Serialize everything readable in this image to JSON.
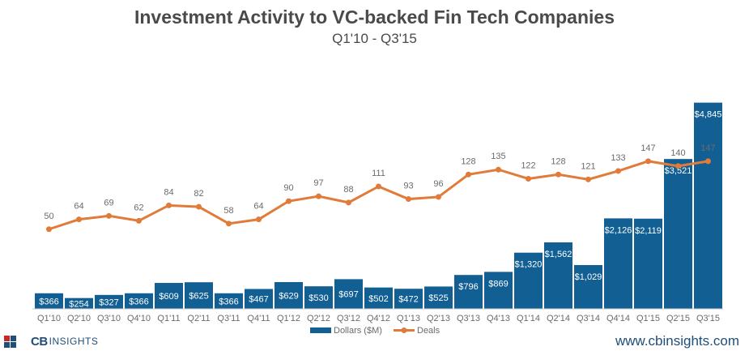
{
  "header": {
    "title": "Investment Activity to VC-backed Fin Tech Companies",
    "subtitle": "Q1'10 - Q3'15"
  },
  "branding": {
    "logo_bold": "CB",
    "logo_text": "INSIGHTS",
    "website": "www.cbinsights.com"
  },
  "chart_data": {
    "type": "bar",
    "title": "Investment Activity to VC-backed Fin Tech Companies",
    "subtitle": "Q1'10 - Q3'15",
    "categories": [
      "Q1'10",
      "Q2'10",
      "Q3'10",
      "Q4'10",
      "Q1'11",
      "Q2'11",
      "Q3'11",
      "Q4'11",
      "Q1'12",
      "Q2'12",
      "Q3'12",
      "Q4'12",
      "Q1'13",
      "Q2'13",
      "Q3'13",
      "Q4'13",
      "Q1'14",
      "Q2'14",
      "Q3'14",
      "Q4'14",
      "Q1'15",
      "Q2'15",
      "Q3'15"
    ],
    "series": [
      {
        "name": "Dollars ($M)",
        "type": "bar",
        "color": "#125f94",
        "values": [
          366,
          254,
          327,
          366,
          609,
          625,
          366,
          467,
          629,
          530,
          697,
          502,
          472,
          525,
          796,
          869,
          1320,
          1562,
          1029,
          2126,
          2119,
          3521,
          4845
        ],
        "labels": [
          "$366",
          "$254",
          "$327",
          "$366",
          "$609",
          "$625",
          "$366",
          "$467",
          "$629",
          "$530",
          "$697",
          "$502",
          "$472",
          "$525",
          "$796",
          "$869",
          "$1,320",
          "$1,562",
          "$1,029",
          "$2,126",
          "$2,119",
          "$3,521",
          "$4,845"
        ]
      },
      {
        "name": "Deals",
        "type": "line",
        "color": "#e07b39",
        "values": [
          50,
          64,
          69,
          62,
          84,
          82,
          58,
          64,
          90,
          97,
          88,
          111,
          93,
          96,
          128,
          135,
          122,
          128,
          121,
          133,
          147,
          140,
          147
        ],
        "labels": [
          "50",
          "64",
          "69",
          "62",
          "84",
          "82",
          "58",
          "64",
          "90",
          "97",
          "88",
          "111",
          "93",
          "96",
          "128",
          "135",
          "122",
          "128",
          "121",
          "133",
          "147",
          "140",
          "147"
        ]
      }
    ],
    "legend": "bottom",
    "grid": false
  }
}
